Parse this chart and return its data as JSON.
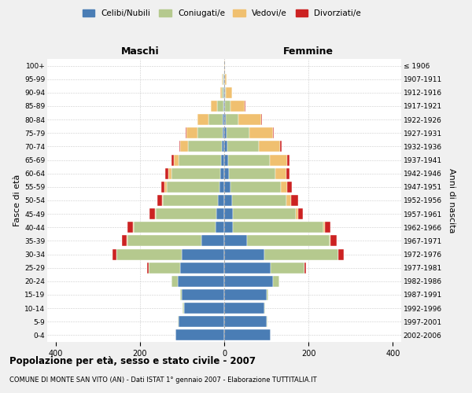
{
  "age_groups": [
    "0-4",
    "5-9",
    "10-14",
    "15-19",
    "20-24",
    "25-29",
    "30-34",
    "35-39",
    "40-44",
    "45-49",
    "50-54",
    "55-59",
    "60-64",
    "65-69",
    "70-74",
    "75-79",
    "80-84",
    "85-89",
    "90-94",
    "95-99",
    "100+"
  ],
  "birth_years": [
    "2002-2006",
    "1997-2001",
    "1992-1996",
    "1987-1991",
    "1982-1986",
    "1977-1981",
    "1972-1976",
    "1967-1971",
    "1962-1966",
    "1957-1961",
    "1952-1956",
    "1947-1951",
    "1942-1946",
    "1937-1941",
    "1932-1936",
    "1927-1931",
    "1922-1926",
    "1917-1921",
    "1912-1916",
    "1907-1911",
    "≤ 1906"
  ],
  "male_celibi": [
    115,
    108,
    95,
    100,
    110,
    105,
    100,
    55,
    20,
    18,
    15,
    12,
    10,
    8,
    6,
    4,
    3,
    2,
    1,
    1,
    0
  ],
  "male_coniugati": [
    1,
    2,
    3,
    5,
    15,
    75,
    155,
    175,
    195,
    145,
    130,
    125,
    115,
    100,
    80,
    60,
    35,
    15,
    4,
    2,
    0
  ],
  "male_vedovi": [
    0,
    0,
    0,
    0,
    0,
    0,
    0,
    1,
    1,
    2,
    3,
    5,
    8,
    12,
    18,
    25,
    25,
    15,
    5,
    2,
    0
  ],
  "male_divorziati": [
    0,
    0,
    0,
    0,
    0,
    2,
    10,
    12,
    14,
    12,
    10,
    8,
    7,
    5,
    3,
    2,
    1,
    0,
    0,
    0,
    0
  ],
  "female_celibi": [
    110,
    100,
    95,
    100,
    115,
    110,
    95,
    55,
    20,
    20,
    18,
    15,
    12,
    9,
    7,
    5,
    3,
    2,
    1,
    0,
    0
  ],
  "female_coniugati": [
    1,
    2,
    2,
    5,
    15,
    80,
    175,
    195,
    215,
    150,
    130,
    120,
    110,
    100,
    75,
    55,
    30,
    12,
    3,
    1,
    0
  ],
  "female_vedovi": [
    0,
    0,
    0,
    0,
    0,
    0,
    1,
    2,
    3,
    5,
    10,
    15,
    25,
    40,
    50,
    55,
    55,
    35,
    15,
    5,
    1
  ],
  "female_divorziati": [
    0,
    0,
    0,
    0,
    1,
    5,
    12,
    14,
    14,
    12,
    18,
    10,
    8,
    6,
    4,
    3,
    2,
    1,
    0,
    0,
    0
  ],
  "color_celibi": "#4a7db5",
  "color_coniugati": "#b5c98e",
  "color_vedovi": "#f0c070",
  "color_divorziati": "#cc2222",
  "title1": "Popolazione per età, sesso e stato civile - 2007",
  "title2": "COMUNE DI MONTE SAN VITO (AN) - Dati ISTAT 1° gennaio 2007 - Elaborazione TUTTITALIA.IT",
  "xlabel_left": "Maschi",
  "xlabel_right": "Femmine",
  "ylabel_left": "Fasce di età",
  "ylabel_right": "Anni di nascita",
  "legend_labels": [
    "Celibi/Nubili",
    "Coniugati/e",
    "Vedovi/e",
    "Divorziat​i/e"
  ],
  "xlim": 420,
  "bg_color": "#f0f0f0",
  "plot_bg_color": "#ffffff"
}
